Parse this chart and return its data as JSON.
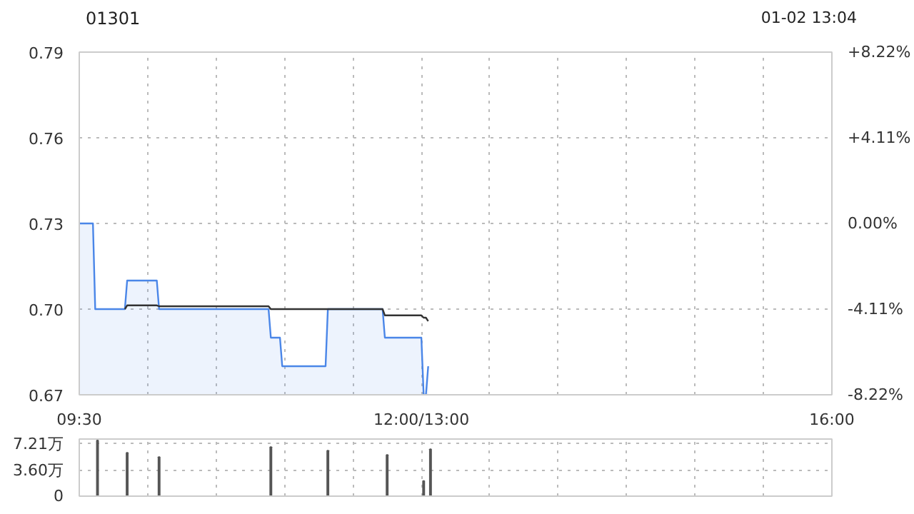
{
  "chart_data": [
    {
      "type": "line",
      "title": "01301",
      "annotations": [
        "01-02 13:04"
      ],
      "categories": [
        "09:30",
        null,
        null,
        null,
        null,
        null,
        null,
        null,
        null,
        null,
        null,
        null,
        null,
        null,
        null,
        null,
        null,
        null,
        null,
        null,
        null,
        null,
        null,
        null,
        null,
        null,
        null,
        null,
        null,
        null,
        null,
        null,
        null,
        null,
        null,
        null,
        null,
        null,
        null,
        null,
        null,
        null,
        null,
        null,
        null,
        null,
        null,
        null,
        null,
        null,
        null,
        null,
        null,
        null,
        null,
        null,
        null,
        null,
        null,
        null,
        null,
        null,
        null,
        null,
        null,
        null,
        null,
        null,
        null,
        null,
        null,
        null,
        null,
        null,
        null,
        null,
        null,
        null,
        null,
        null,
        null,
        null,
        null,
        null,
        null,
        null,
        null,
        null,
        null,
        null,
        null,
        null,
        null,
        null,
        null,
        null,
        null,
        null,
        null,
        null,
        null,
        null,
        null,
        null,
        null,
        null,
        null,
        null,
        null,
        null,
        null,
        null,
        null,
        null,
        null,
        null,
        null,
        null,
        null,
        null,
        null,
        null,
        null,
        null,
        null,
        null,
        null,
        null,
        null,
        null,
        null,
        null,
        null,
        null,
        null,
        null,
        null,
        null,
        null,
        null,
        null,
        null,
        null,
        null,
        null,
        null,
        null,
        null,
        null,
        null,
        "12:00/13:00",
        null,
        null,
        null,
        null,
        null,
        null,
        null,
        null,
        null,
        null,
        null,
        null,
        null,
        null,
        null,
        null,
        null,
        null,
        null,
        null,
        null,
        null,
        null,
        null,
        null,
        null,
        null,
        null,
        null,
        null,
        null,
        null,
        null,
        null,
        null,
        null,
        null,
        null,
        null,
        null,
        null,
        null,
        null,
        null,
        null,
        null,
        null,
        null,
        null,
        null,
        null,
        null,
        null,
        null,
        null,
        null,
        null,
        null,
        null,
        null,
        null,
        null,
        null,
        null,
        null,
        null,
        null,
        null,
        null,
        null,
        null,
        null,
        null,
        null,
        null,
        null,
        null,
        null,
        null,
        null,
        null,
        null,
        null,
        null,
        null,
        null,
        null,
        null,
        null,
        null,
        null,
        null,
        null,
        null,
        null,
        null,
        null,
        null,
        null,
        null,
        null,
        null,
        null,
        null,
        null,
        null,
        null,
        null,
        null,
        null,
        null,
        null,
        null,
        null,
        null,
        null,
        null,
        null,
        null,
        null,
        null,
        null,
        null,
        null,
        null,
        null,
        null,
        null,
        null,
        null,
        null,
        null,
        null,
        null,
        null,
        null,
        null,
        null,
        null,
        null,
        null,
        null,
        null,
        null,
        null,
        null,
        null,
        null,
        null,
        null,
        null,
        null,
        null,
        null,
        null,
        null,
        null,
        null,
        null,
        null,
        null,
        null,
        null,
        null,
        null,
        null,
        null,
        null,
        null,
        null,
        null,
        null,
        null,
        null,
        null,
        null,
        null,
        null,
        null,
        "16:00"
      ],
      "ylim": [
        0.67,
        0.79
      ],
      "yticks": [
        0.67,
        {
          "value": 0.7,
          "label": "0.70"
        },
        0.73,
        0.76,
        0.79
      ],
      "y2lim": [
        -8.22,
        8.22
      ],
      "y2ticks": [
        {
          "value": -8.22,
          "label": "-8.22%"
        },
        {
          "value": -4.11,
          "label": "-4.11%"
        },
        {
          "value": 0,
          "label": "0.00%"
        },
        {
          "value": 4.11,
          "label": "+4.11%"
        },
        {
          "value": 8.22,
          "label": "+8.22%"
        }
      ],
      "grid": true,
      "line_style": "solid",
      "series": [
        {
          "type": "area",
          "color": "#4a86e8",
          "values": [
            0.73,
            0.73,
            0.73,
            0.73,
            0.73,
            0.73,
            0.73,
            0.7,
            0.7,
            0.7,
            0.7,
            0.7,
            0.7,
            0.7,
            0.7,
            0.7,
            0.7,
            0.7,
            0.7,
            0.7,
            0.7,
            0.71,
            0.71,
            0.71,
            0.71,
            0.71,
            0.71,
            0.71,
            0.71,
            0.71,
            0.71,
            0.71,
            0.71,
            0.71,
            0.71,
            0.7,
            0.7,
            0.7,
            0.7,
            0.7,
            0.7,
            0.7,
            0.7,
            0.7,
            0.7,
            0.7,
            0.7,
            0.7,
            0.7,
            0.7,
            0.7,
            0.7,
            0.7,
            0.7,
            0.7,
            0.7,
            0.7,
            0.7,
            0.7,
            0.7,
            0.7,
            0.7,
            0.7,
            0.7,
            0.7,
            0.7,
            0.7,
            0.7,
            0.7,
            0.7,
            0.7,
            0.7,
            0.7,
            0.7,
            0.7,
            0.7,
            0.7,
            0.7,
            0.7,
            0.7,
            0.7,
            0.7,
            0.7,
            0.7,
            0.69,
            0.69,
            0.69,
            0.69,
            0.69,
            0.68,
            0.68,
            0.68,
            0.68,
            0.68,
            0.68,
            0.68,
            0.68,
            0.68,
            0.68,
            0.68,
            0.68,
            0.68,
            0.68,
            0.68,
            0.68,
            0.68,
            0.68,
            0.68,
            0.68,
            0.7,
            0.7,
            0.7,
            0.7,
            0.7,
            0.7,
            0.7,
            0.7,
            0.7,
            0.7,
            0.7,
            0.7,
            0.7,
            0.7,
            0.7,
            0.7,
            0.7,
            0.7,
            0.7,
            0.7,
            0.7,
            0.7,
            0.7,
            0.7,
            0.7,
            0.69,
            0.69,
            0.69,
            0.69,
            0.69,
            0.69,
            0.69,
            0.69,
            0.69,
            0.69,
            0.69,
            0.69,
            0.69,
            0.69,
            0.69,
            0.69,
            0.69,
            0.67,
            0.67,
            0.68,
            null,
            null,
            null,
            null,
            null,
            null,
            null,
            null,
            null,
            null,
            null,
            null,
            null,
            null,
            null,
            null,
            null,
            null,
            null,
            null,
            null,
            null,
            null,
            null,
            null,
            null,
            null,
            null,
            null,
            null,
            null,
            null,
            null,
            null,
            null,
            null,
            null,
            null,
            null,
            null,
            null,
            null,
            null,
            null,
            null,
            null,
            null,
            null,
            null,
            null,
            null,
            null,
            null,
            null,
            null,
            null,
            null,
            null,
            null,
            null,
            null,
            null,
            null,
            null,
            null,
            null,
            null,
            null,
            null,
            null,
            null,
            null,
            null,
            null,
            null,
            null,
            null,
            null,
            null,
            null,
            null,
            null,
            null,
            null,
            null,
            null,
            null,
            null,
            null,
            null,
            null,
            null,
            null,
            null,
            null,
            null,
            null,
            null,
            null,
            null,
            null,
            null,
            null,
            null,
            null,
            null,
            null,
            null,
            null,
            null,
            null,
            null,
            null,
            null,
            null,
            null,
            null,
            null,
            null,
            null,
            null,
            null,
            null,
            null,
            null,
            null,
            null,
            null,
            null,
            null,
            null,
            null,
            null,
            null,
            null,
            null,
            null,
            null,
            null,
            null,
            null,
            null,
            null,
            null,
            null,
            null,
            null,
            null,
            null,
            null,
            null,
            null,
            null,
            null,
            null,
            null,
            null,
            null,
            null,
            null,
            null,
            null,
            null,
            null,
            null,
            null,
            null,
            null,
            null,
            null,
            null,
            null,
            null,
            null,
            null,
            null,
            null
          ]
        },
        {
          "type": "line",
          "color": "#333333",
          "values": [
            null,
            null,
            null,
            null,
            null,
            null,
            null,
            null,
            null,
            null,
            null,
            null,
            null,
            null,
            null,
            null,
            null,
            null,
            null,
            null,
            0.7,
            0.7013,
            0.7013,
            0.7013,
            0.7013,
            0.7013,
            0.7013,
            0.7013,
            0.7013,
            0.7013,
            0.7013,
            0.7013,
            0.7013,
            0.7013,
            0.7013,
            0.701,
            0.701,
            0.701,
            0.701,
            0.701,
            0.701,
            0.701,
            0.701,
            0.701,
            0.701,
            0.701,
            0.701,
            0.701,
            0.701,
            0.701,
            0.701,
            0.701,
            0.701,
            0.701,
            0.701,
            0.701,
            0.701,
            0.701,
            0.701,
            0.701,
            0.701,
            0.701,
            0.701,
            0.701,
            0.701,
            0.701,
            0.701,
            0.701,
            0.701,
            0.701,
            0.701,
            0.701,
            0.701,
            0.701,
            0.701,
            0.701,
            0.701,
            0.701,
            0.701,
            0.701,
            0.701,
            0.701,
            0.701,
            0.701,
            0.7,
            0.7,
            0.7,
            0.7,
            0.7,
            0.7,
            0.7,
            0.7,
            0.7,
            0.7,
            0.7,
            0.7,
            0.7,
            0.7,
            0.7,
            0.7,
            0.7,
            0.7,
            0.7,
            0.7,
            0.7,
            0.7,
            0.7,
            0.7,
            0.7,
            0.7,
            0.7,
            0.7,
            0.7,
            0.7,
            0.7,
            0.7,
            0.7,
            0.7,
            0.7,
            0.7,
            0.7,
            0.7,
            0.7,
            0.7,
            0.7,
            0.7,
            0.7,
            0.7,
            0.7,
            0.7,
            0.7,
            0.7,
            0.7,
            0.7,
            0.6978,
            0.6978,
            0.6978,
            0.6978,
            0.6978,
            0.6978,
            0.6978,
            0.6978,
            0.6978,
            0.6978,
            0.6978,
            0.6978,
            0.6978,
            0.6978,
            0.6978,
            0.6978,
            0.6978,
            0.697,
            0.697,
            0.6958,
            null,
            null,
            null,
            null,
            null,
            null,
            null,
            null,
            null,
            null,
            null,
            null,
            null,
            null,
            null,
            null,
            null,
            null,
            null,
            null,
            null,
            null,
            null,
            null,
            null,
            null,
            null,
            null,
            null,
            null,
            null,
            null,
            null,
            null,
            null,
            null,
            null,
            null,
            null,
            null,
            null,
            null,
            null,
            null,
            null,
            null,
            null,
            null,
            null,
            null,
            null,
            null,
            null,
            null,
            null,
            null,
            null,
            null,
            null,
            null,
            null,
            null,
            null,
            null,
            null,
            null,
            null,
            null,
            null,
            null,
            null,
            null,
            null,
            null,
            null,
            null,
            null,
            null,
            null,
            null,
            null,
            null,
            null,
            null,
            null,
            null,
            null,
            null,
            null,
            null,
            null,
            null,
            null,
            null,
            null,
            null,
            null,
            null,
            null,
            null,
            null,
            null,
            null,
            null,
            null,
            null,
            null,
            null,
            null,
            null,
            null,
            null,
            null,
            null,
            null,
            null,
            null,
            null,
            null,
            null,
            null,
            null,
            null,
            null,
            null,
            null,
            null,
            null,
            null,
            null,
            null,
            null,
            null,
            null,
            null,
            null,
            null,
            null,
            null,
            null,
            null,
            null,
            null,
            null,
            null,
            null,
            null,
            null,
            null,
            null,
            null,
            null,
            null,
            null,
            null,
            null,
            null,
            null,
            null,
            null,
            null,
            null,
            null,
            null,
            null,
            null,
            null,
            null,
            null,
            null,
            null,
            null,
            null,
            null,
            null,
            null,
            null
          ]
        }
      ]
    },
    {
      "type": "bar",
      "categories": [
        null,
        null,
        null,
        null,
        null,
        null,
        null,
        null,
        null,
        null,
        null,
        null,
        null,
        null,
        null,
        null,
        null,
        null,
        null,
        null,
        null,
        null,
        null,
        null,
        null,
        null,
        null,
        null,
        null,
        null,
        null,
        null,
        null,
        null,
        null,
        null,
        null,
        null,
        null,
        null,
        null,
        null,
        null,
        null,
        null,
        null,
        null,
        null,
        null,
        null,
        null,
        null,
        null,
        null,
        null,
        null,
        null,
        null,
        null,
        null,
        null,
        null,
        null,
        null,
        null,
        null,
        null,
        null,
        null,
        null,
        null,
        null,
        null,
        null,
        null,
        null,
        null,
        null,
        null,
        null,
        null,
        null,
        null,
        null,
        null,
        null,
        null,
        null,
        null,
        null,
        null,
        null,
        null,
        null,
        null,
        null,
        null,
        null,
        null,
        null,
        null,
        null,
        null,
        null,
        null,
        null,
        null,
        null,
        null,
        null,
        null,
        null,
        null,
        null,
        null,
        null,
        null,
        null,
        null,
        null,
        null,
        null,
        null,
        null,
        null,
        null,
        null,
        null,
        null,
        null,
        null,
        null,
        null,
        null,
        null,
        null,
        null,
        null,
        null,
        null,
        null,
        null,
        null,
        null,
        null,
        null,
        null,
        null,
        null,
        null,
        null,
        null,
        null,
        null,
        null,
        null,
        null,
        null,
        null,
        null,
        null,
        null,
        null,
        null,
        null,
        null,
        null,
        null,
        null,
        null,
        null,
        null,
        null,
        null,
        null,
        null,
        null,
        null,
        null,
        null,
        null,
        null,
        null,
        null,
        null,
        null,
        null,
        null,
        null,
        null,
        null,
        null,
        null,
        null,
        null,
        null,
        null,
        null,
        null,
        null,
        null,
        null,
        null,
        null,
        null,
        null,
        null,
        null,
        null,
        null,
        null,
        null,
        null,
        null,
        null,
        null,
        null,
        null,
        null,
        null,
        null,
        null,
        null,
        null,
        null,
        null,
        null,
        null,
        null,
        null,
        null,
        null,
        null,
        null,
        null,
        null,
        null,
        null,
        null,
        null,
        null,
        null,
        null,
        null,
        null,
        null,
        null,
        null,
        null,
        null,
        null,
        null,
        null,
        null,
        null,
        null,
        null,
        null,
        null,
        null,
        null,
        null,
        null,
        null,
        null,
        null,
        null,
        null,
        null,
        null,
        null,
        null,
        null,
        null,
        null,
        null,
        null,
        null,
        null,
        null,
        null,
        null,
        null,
        null,
        null,
        null,
        null,
        null,
        null,
        null,
        null,
        null,
        null,
        null,
        null,
        null,
        null,
        null,
        null,
        null,
        null,
        null,
        null,
        null,
        null,
        null,
        null,
        null,
        null,
        null,
        null,
        null,
        null,
        null,
        null,
        null,
        null,
        null,
        null,
        null,
        null,
        null,
        null,
        null,
        null,
        null,
        null,
        null,
        null,
        null,
        null
      ],
      "values": [
        null,
        null,
        null,
        null,
        null,
        null,
        null,
        null,
        7.7,
        null,
        null,
        null,
        null,
        null,
        null,
        null,
        null,
        null,
        null,
        null,
        null,
        6.0,
        null,
        null,
        null,
        null,
        null,
        null,
        null,
        null,
        null,
        null,
        null,
        null,
        null,
        5.4,
        null,
        null,
        null,
        null,
        null,
        null,
        null,
        null,
        null,
        null,
        null,
        null,
        null,
        null,
        null,
        null,
        null,
        null,
        null,
        null,
        null,
        null,
        null,
        null,
        null,
        null,
        null,
        null,
        null,
        null,
        null,
        null,
        null,
        null,
        null,
        null,
        null,
        null,
        null,
        null,
        null,
        null,
        null,
        null,
        null,
        null,
        null,
        null,
        6.8,
        null,
        null,
        null,
        null,
        null,
        null,
        null,
        null,
        null,
        null,
        null,
        null,
        null,
        null,
        null,
        null,
        null,
        null,
        null,
        null,
        null,
        null,
        null,
        null,
        6.3,
        null,
        null,
        null,
        null,
        null,
        null,
        null,
        null,
        null,
        null,
        null,
        null,
        null,
        null,
        null,
        null,
        null,
        null,
        null,
        null,
        null,
        null,
        null,
        null,
        null,
        5.7,
        null,
        null,
        null,
        null,
        null,
        null,
        null,
        null,
        null,
        null,
        null,
        null,
        null,
        null,
        null,
        2.1,
        null,
        null,
        6.5,
        null,
        null,
        null,
        null,
        null,
        null,
        null,
        null,
        null,
        null,
        null,
        null,
        null,
        null,
        null,
        null,
        null,
        null,
        null,
        null,
        null,
        null,
        null,
        null,
        null,
        null,
        null,
        null,
        null,
        null,
        null,
        null,
        null,
        null,
        null,
        null,
        null,
        null,
        null,
        null,
        null,
        null,
        null,
        null,
        null,
        null,
        null,
        null,
        null,
        null,
        null,
        null,
        null,
        null,
        null,
        null,
        null,
        null,
        null,
        null,
        null,
        null,
        null,
        null,
        null,
        null,
        null,
        null,
        null,
        null,
        null,
        null,
        null,
        null,
        null,
        null,
        null,
        null,
        null,
        null,
        null,
        null,
        null,
        null,
        null,
        null,
        null,
        null,
        null,
        null,
        null,
        null,
        null,
        null,
        null,
        null,
        null,
        null,
        null,
        null,
        null,
        null,
        null,
        null,
        null,
        null,
        null,
        null,
        null,
        null,
        null,
        null,
        null,
        null,
        null,
        null,
        null,
        null,
        null,
        null,
        null,
        null,
        null,
        null,
        null,
        null,
        null,
        null,
        null,
        null,
        null,
        null,
        null,
        null,
        null,
        null,
        null,
        null,
        null,
        null,
        null,
        null,
        null,
        null,
        null,
        null,
        null,
        null,
        null,
        null,
        null,
        null,
        null,
        null,
        null,
        null,
        null,
        null,
        null,
        null,
        null,
        null,
        null,
        null,
        null,
        null,
        null,
        null,
        null,
        null,
        null,
        null,
        null,
        null,
        null,
        null
      ],
      "color": "#555555",
      "ylim": [
        0,
        7.9
      ],
      "yticks": [
        0,
        {
          "value": 3.6,
          "label": "3.60万"
        },
        {
          "value": 7.21,
          "label": "7.21万"
        }
      ],
      "grid": true
    }
  ]
}
